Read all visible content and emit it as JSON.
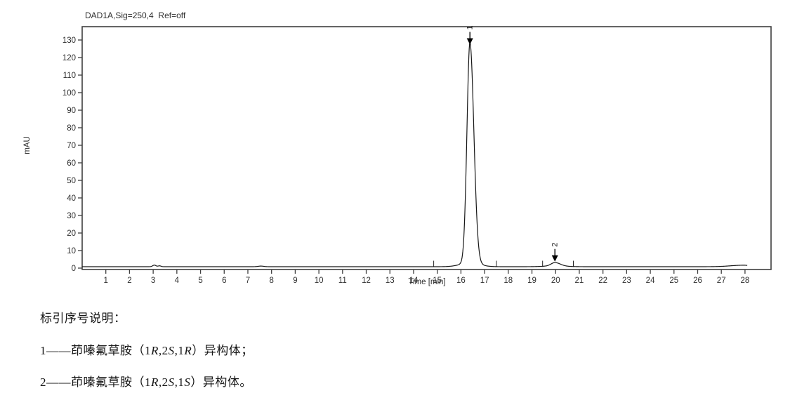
{
  "chart": {
    "title": "DAD1A,Sig=250,4  Ref=off",
    "xlabel": "Time [min]",
    "ylabel": "mAU",
    "trace_color": "#161616",
    "frame_color": "#3f3f3f",
    "text_color": "#2f2f2f",
    "marker_color": "#000000"
  },
  "chart_data": {
    "type": "line",
    "title": "DAD1A,Sig=250,4 Ref=off",
    "xlabel": "Time [min]",
    "ylabel": "mAU",
    "xlim": [
      0,
      29.1
    ],
    "ylim": [
      -0.8,
      137.6
    ],
    "x_ticks": [
      1,
      2,
      3,
      4,
      5,
      6,
      7,
      8,
      9,
      10,
      11,
      12,
      13,
      14,
      15,
      16,
      17,
      18,
      19,
      20,
      21,
      22,
      23,
      24,
      25,
      26,
      27,
      28
    ],
    "y_ticks": [
      0,
      10,
      20,
      30,
      40,
      50,
      60,
      70,
      80,
      90,
      100,
      110,
      120,
      130
    ],
    "grid": false,
    "baseline_mAU": 0.8,
    "trace_end_min": 28.1,
    "peaks": [
      {
        "label": "1",
        "rt_min": 16.38,
        "height_mAU": 125.6,
        "sigma_left_min": 0.125,
        "sigma_right_min": 0.165
      },
      {
        "label": "2",
        "rt_min": 19.97,
        "height_mAU": 1.9,
        "sigma_left_min": 0.16,
        "sigma_right_min": 0.22
      }
    ],
    "minor_features": [
      {
        "t_min": 3.05,
        "height_mAU": 0.9,
        "sigma_min": 0.07
      },
      {
        "t_min": 3.27,
        "height_mAU": 0.5,
        "sigma_min": 0.06
      },
      {
        "t_min": 7.55,
        "height_mAU": 0.35,
        "sigma_min": 0.12
      },
      {
        "t_min": 16.38,
        "height_mAU": 2.2,
        "sigma_min": 0.4
      },
      {
        "t_min": 19.97,
        "height_mAU": 0.45,
        "sigma_min": 0.45
      },
      {
        "t_min": 27.95,
        "height_mAU": 0.85,
        "sigma_min": 0.55,
        "sigma_right_min": 0.25
      }
    ],
    "integration_marks_min": [
      14.85,
      17.5,
      19.45,
      20.75
    ]
  },
  "legend": {
    "heading": "标引序号说明：",
    "lines": [
      {
        "name": "peak-1-description",
        "parts": [
          {
            "text": "1——茚嗪氟草胺（1"
          },
          {
            "text": "R",
            "italic": true
          },
          {
            "text": ",2"
          },
          {
            "text": "S",
            "italic": true
          },
          {
            "text": ",1"
          },
          {
            "text": "R",
            "italic": true
          },
          {
            "text": "）异构体；"
          }
        ]
      },
      {
        "name": "peak-2-description",
        "parts": [
          {
            "text": "2——茚嗪氟草胺（1"
          },
          {
            "text": "R",
            "italic": true
          },
          {
            "text": ",2"
          },
          {
            "text": "S",
            "italic": true
          },
          {
            "text": ",1"
          },
          {
            "text": "S",
            "italic": true
          },
          {
            "text": "）异构体。"
          }
        ]
      }
    ]
  }
}
